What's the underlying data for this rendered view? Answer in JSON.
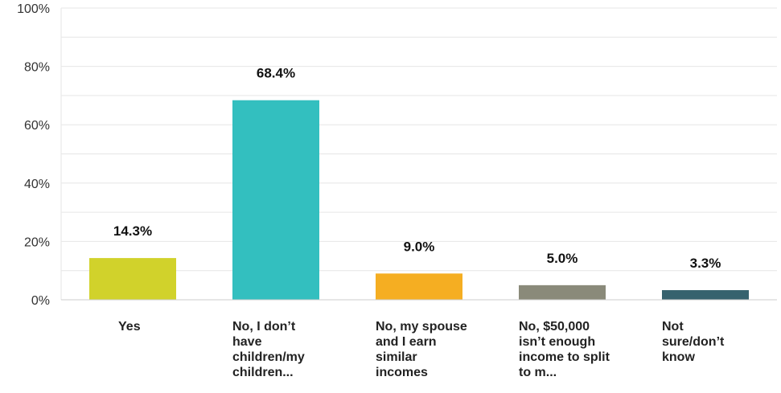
{
  "chart_data": {
    "type": "bar",
    "categories": [
      "Yes",
      "No, I don’t have children/my children...",
      "No, my spouse and I earn similar incomes",
      "No, $50,000 isn’t enough income to split to m...",
      "Not sure/don’t know"
    ],
    "values": [
      14.3,
      68.4,
      9.0,
      5.0,
      3.3
    ],
    "data_labels": [
      "14.3%",
      "68.4%",
      "9.0%",
      "5.0%",
      "3.3%"
    ],
    "colors": [
      "#d1d22b",
      "#33bfbf",
      "#f5ae22",
      "#8a8a7a",
      "#36626e"
    ],
    "ylim": [
      0,
      100
    ],
    "yticks": [
      0,
      20,
      40,
      60,
      80,
      100
    ],
    "ytick_labels": [
      "0%",
      "20%",
      "40%",
      "60%",
      "80%",
      "100%"
    ],
    "grid": true,
    "title": "",
    "xlabel": "",
    "ylabel": ""
  }
}
